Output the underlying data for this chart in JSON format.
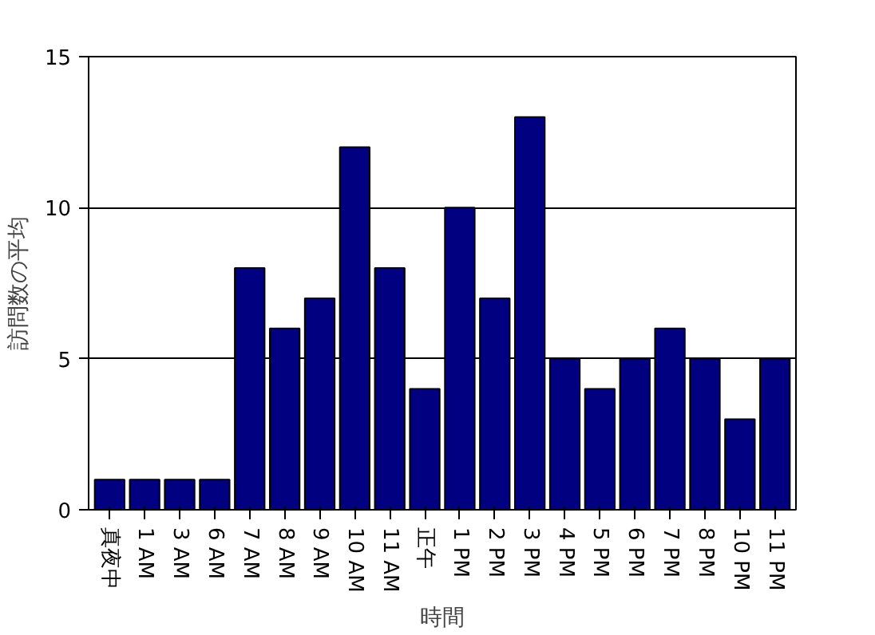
{
  "chart_data": {
    "type": "bar",
    "xlabel": "時間",
    "ylabel": "訪問数の平均",
    "categories": [
      "真夜中",
      "1 AM",
      "3 AM",
      "6 AM",
      "7 AM",
      "8 AM",
      "9 AM",
      "10 AM",
      "11 AM",
      "正午",
      "1 PM",
      "2 PM",
      "3 PM",
      "4 PM",
      "5 PM",
      "6 PM",
      "7 PM",
      "8 PM",
      "10 PM",
      "11 PM"
    ],
    "values": [
      1,
      1,
      1,
      1,
      8,
      6,
      7,
      12,
      8,
      4,
      10,
      7,
      13,
      5,
      4,
      5,
      6,
      5,
      3,
      5
    ],
    "color": "#000080",
    "ylim": [
      0,
      15
    ],
    "yticks": [
      0,
      5,
      10,
      15
    ],
    "grid": "y"
  }
}
